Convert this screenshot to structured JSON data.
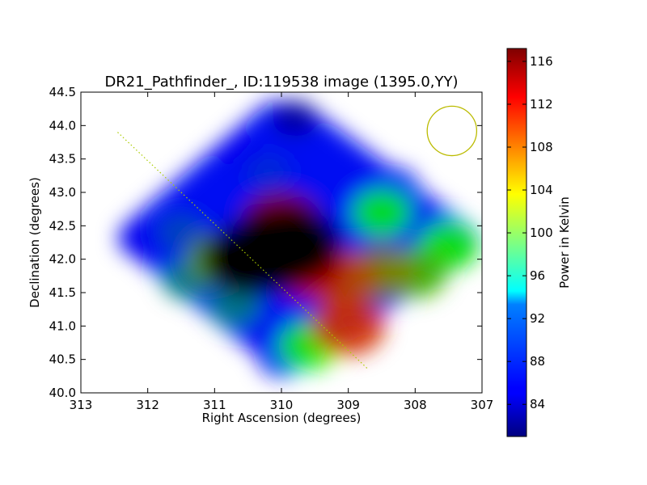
{
  "chart_data": {
    "type": "heatmap",
    "title": "DR21_Pathfinder_, ID:119538 image (1395.0,YY)",
    "xlabel": "Right Ascension (degrees)",
    "ylabel": "Declination (degrees)",
    "xlim": [
      313,
      307
    ],
    "ylim": [
      40.0,
      44.5
    ],
    "x_ticks": [
      313,
      312,
      311,
      310,
      309,
      308,
      307
    ],
    "x_tick_labels": [
      "313",
      "312",
      "311",
      "310",
      "309",
      "308",
      "307"
    ],
    "y_ticks": [
      40.0,
      40.5,
      41.0,
      41.5,
      42.0,
      42.5,
      43.0,
      43.5,
      44.0,
      44.5
    ],
    "y_tick_labels": [
      "40.0",
      "40.5",
      "41.0",
      "41.5",
      "42.0",
      "42.5",
      "43.0",
      "43.5",
      "44.0",
      "44.5"
    ],
    "grid": false,
    "colormap": "jet",
    "colorbar": {
      "label": "Power in Kelvin",
      "vmin": 81.0,
      "vmax": 117.2,
      "ticks": [
        84,
        88,
        92,
        96,
        100,
        104,
        108,
        112,
        116
      ],
      "tick_labels": [
        "84",
        "88",
        "92",
        "96",
        "100",
        "104",
        "108",
        "112",
        "116"
      ]
    },
    "coverage_outline": [
      [
        312.45,
        42.35
      ],
      [
        312.4,
        42.2
      ],
      [
        310.1,
        40.35
      ],
      [
        309.8,
        40.35
      ],
      [
        307.05,
        42.1
      ],
      [
        307.05,
        42.4
      ],
      [
        309.7,
        44.35
      ],
      [
        310.2,
        44.35
      ],
      [
        312.35,
        42.5
      ]
    ],
    "field_points": [
      {
        "ra": 310.2,
        "dec": 42.1,
        "value": 117
      },
      {
        "ra": 310.5,
        "dec": 42.0,
        "value": 112
      },
      {
        "ra": 309.8,
        "dec": 42.2,
        "value": 113
      },
      {
        "ra": 309.6,
        "dec": 41.9,
        "value": 106
      },
      {
        "ra": 310.0,
        "dec": 42.5,
        "value": 108
      },
      {
        "ra": 310.9,
        "dec": 42.0,
        "value": 98
      },
      {
        "ra": 309.1,
        "dec": 41.7,
        "value": 101
      },
      {
        "ra": 309.0,
        "dec": 41.0,
        "value": 102
      },
      {
        "ra": 308.5,
        "dec": 41.8,
        "value": 99
      },
      {
        "ra": 308.0,
        "dec": 41.8,
        "value": 97
      },
      {
        "ra": 307.5,
        "dec": 42.2,
        "value": 95
      },
      {
        "ra": 308.5,
        "dec": 42.7,
        "value": 94
      },
      {
        "ra": 309.6,
        "dec": 40.7,
        "value": 95
      },
      {
        "ra": 310.7,
        "dec": 41.3,
        "value": 90
      },
      {
        "ra": 311.4,
        "dec": 41.7,
        "value": 90
      },
      {
        "ra": 311.5,
        "dec": 42.4,
        "value": 88
      },
      {
        "ra": 312.1,
        "dec": 42.3,
        "value": 85
      },
      {
        "ra": 310.0,
        "dec": 40.5,
        "value": 86
      },
      {
        "ra": 310.2,
        "dec": 43.3,
        "value": 87
      },
      {
        "ra": 309.3,
        "dec": 43.5,
        "value": 86
      },
      {
        "ra": 309.8,
        "dec": 44.1,
        "value": 82
      },
      {
        "ra": 310.6,
        "dec": 43.6,
        "value": 85
      },
      {
        "ra": 308.3,
        "dec": 43.1,
        "value": 86
      }
    ],
    "overlays": {
      "dotted_line": {
        "start": [
          312.45,
          43.9
        ],
        "end": [
          308.7,
          40.35
        ],
        "color": "#aacc00"
      },
      "beam_circle": {
        "ra": 307.45,
        "dec": 43.92,
        "radius_deg": 0.37,
        "color": "#bbbb00"
      }
    }
  }
}
